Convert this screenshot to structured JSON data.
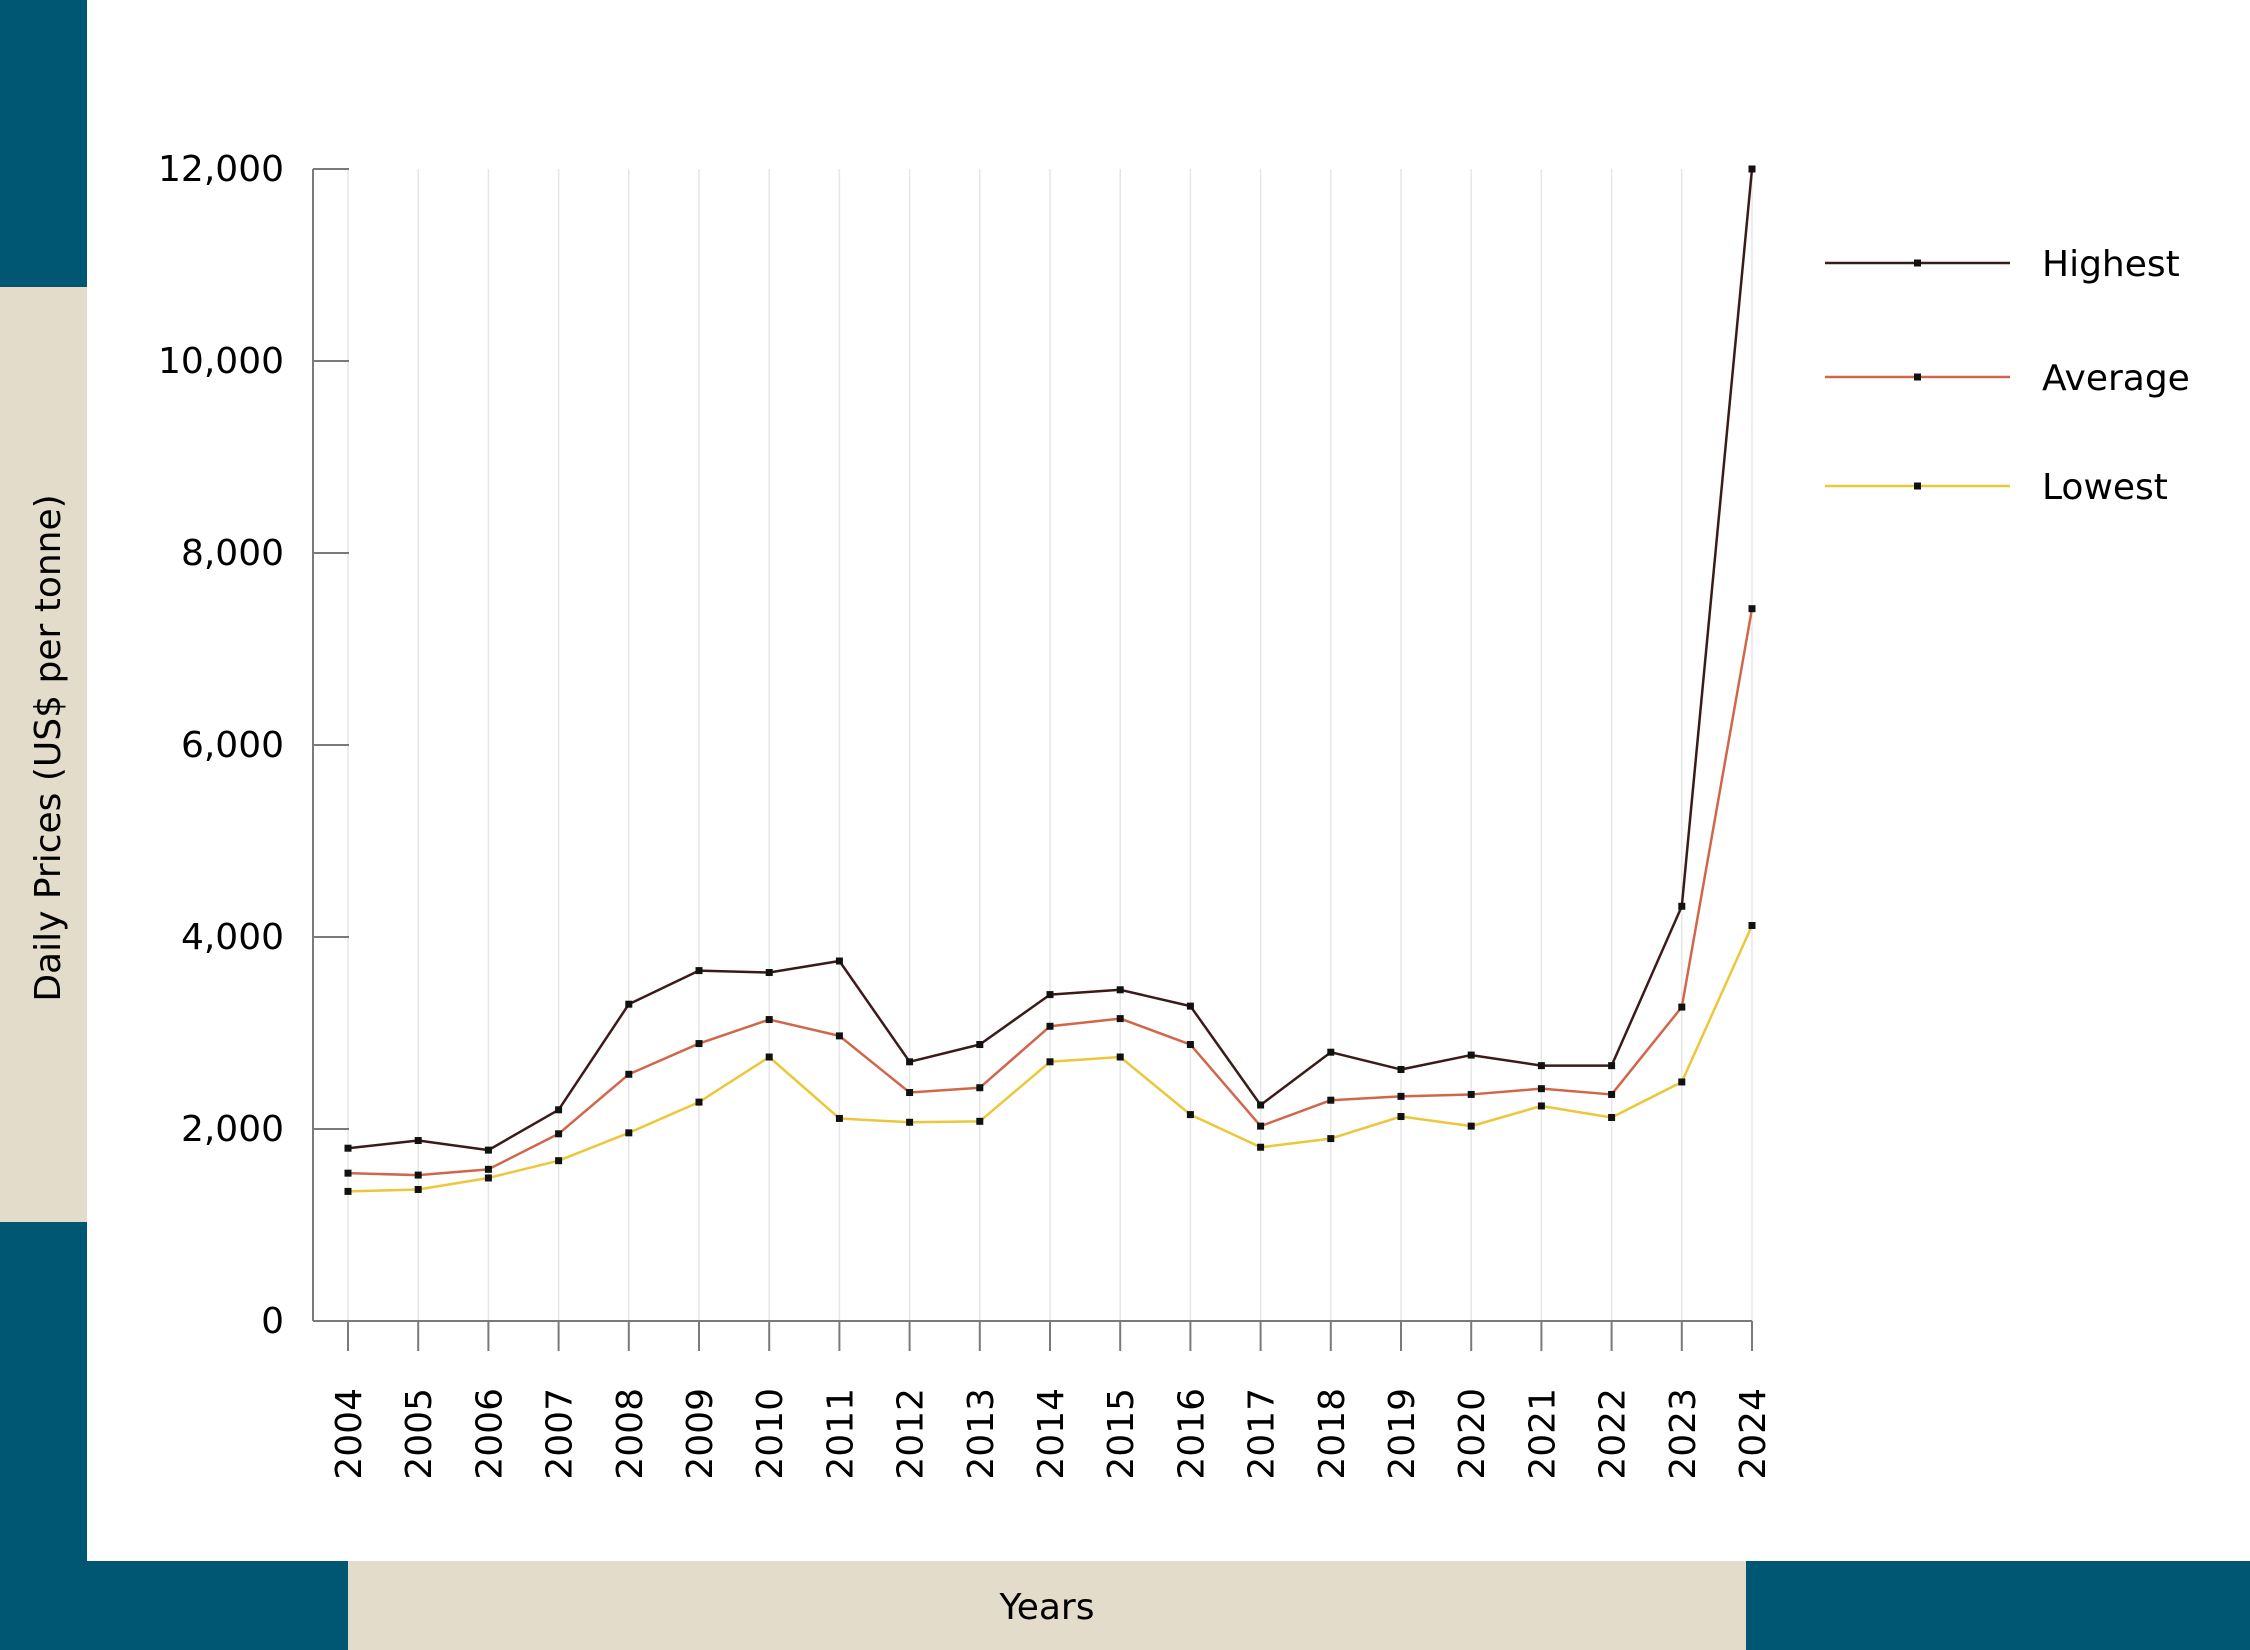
{
  "theme": {
    "frame_dark": "#005773",
    "frame_light": "#e3dccb",
    "grid": "#e6e6e6",
    "axis": "#7a7a7a"
  },
  "chart_data": {
    "type": "line",
    "title": "",
    "xlabel": "Years",
    "ylabel": "Daily Prices (US$ per tonne)",
    "ylim": [
      0,
      12000
    ],
    "yticks": [
      0,
      2000,
      4000,
      6000,
      8000,
      10000,
      12000
    ],
    "ytick_labels": [
      "0",
      "2,000",
      "4,000",
      "6,000",
      "8,000",
      "10,000",
      "12,000"
    ],
    "grid": "vertical",
    "legend_position": "top-right",
    "categories": [
      "2004",
      "2005",
      "2006",
      "2007",
      "2008",
      "2009",
      "2010",
      "2011",
      "2012",
      "2013",
      "2014",
      "2015",
      "2016",
      "2017",
      "2018",
      "2019",
      "2020",
      "2021",
      "2022",
      "2023",
      "2024"
    ],
    "series": [
      {
        "name": "Highest",
        "color": "#3b1a1a",
        "values": [
          1800,
          1880,
          1780,
          2200,
          3300,
          3650,
          3630,
          3750,
          2700,
          2880,
          3400,
          3450,
          3280,
          2250,
          2800,
          2620,
          2770,
          2660,
          2660,
          4320,
          12000
        ]
      },
      {
        "name": "Average",
        "color": "#d0674a",
        "values": [
          1540,
          1520,
          1580,
          1950,
          2570,
          2890,
          3140,
          2970,
          2380,
          2430,
          3070,
          3150,
          2880,
          2030,
          2300,
          2340,
          2360,
          2420,
          2360,
          3270,
          7420
        ]
      },
      {
        "name": "Lowest",
        "color": "#ecc73a",
        "values": [
          1350,
          1370,
          1490,
          1670,
          1960,
          2280,
          2750,
          2110,
          2070,
          2080,
          2700,
          2750,
          2150,
          1810,
          1900,
          2130,
          2030,
          2240,
          2120,
          2490,
          4120
        ]
      }
    ]
  }
}
